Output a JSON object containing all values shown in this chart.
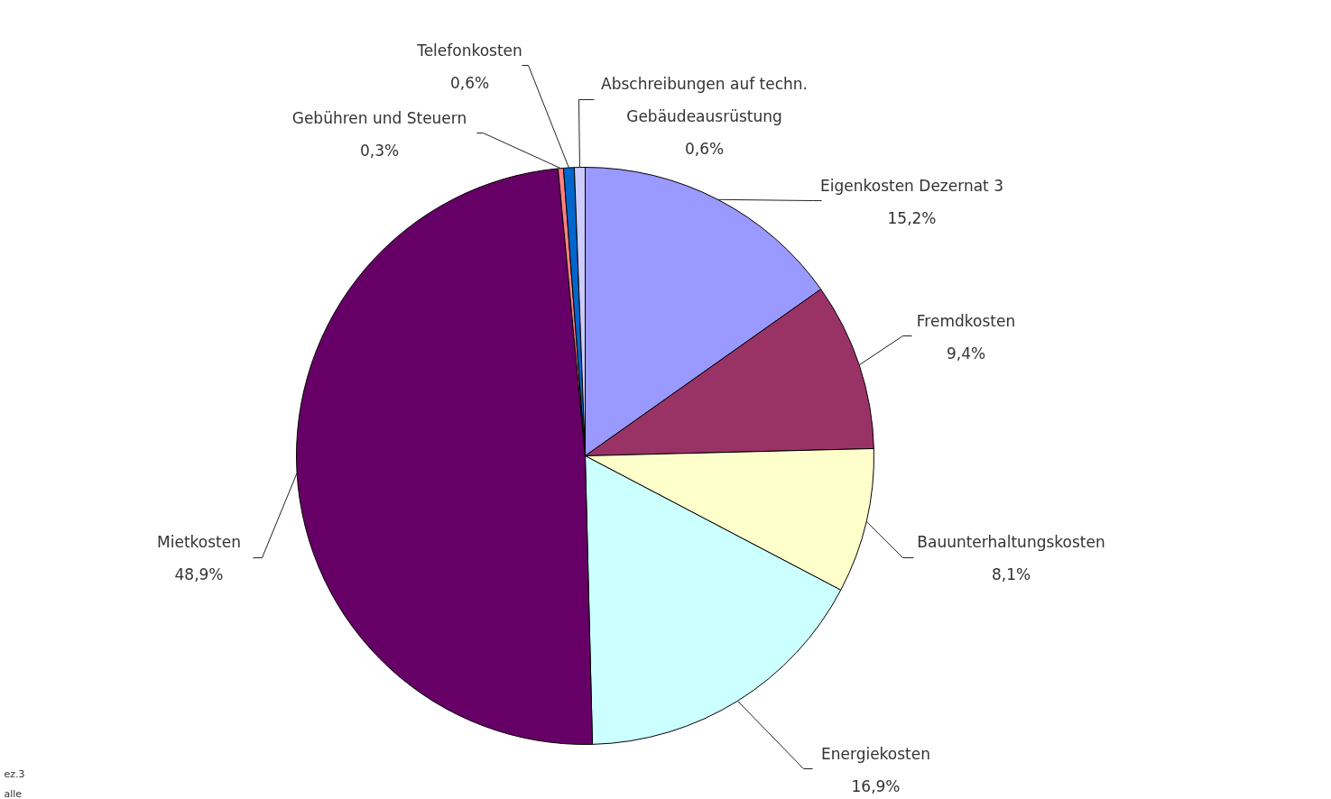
{
  "chart_data": {
    "type": "pie",
    "categories": [
      "Eigenkosten Dezernat 3",
      "Fremdkosten",
      "Bauunterhaltungskosten",
      "Energiekosten",
      "Mietkosten",
      "Gebühren und Steuern",
      "Telefonkosten",
      "Abschreibungen auf techn.\nGebäudeausrüstung"
    ],
    "values": [
      15.2,
      9.4,
      8.1,
      16.9,
      48.9,
      0.3,
      0.6,
      0.6
    ],
    "colors": [
      "#9999ff",
      "#993366",
      "#ffffcc",
      "#ccffff",
      "#660066",
      "#ff8080",
      "#0066cc",
      "#ccccff"
    ],
    "value_labels": [
      "15,2%",
      "9,4%",
      "8,1%",
      "16,9%",
      "48,9%",
      "0,3%",
      "0,6%",
      "0,6%"
    ],
    "annotations": [
      "ez.3",
      "alle"
    ]
  }
}
